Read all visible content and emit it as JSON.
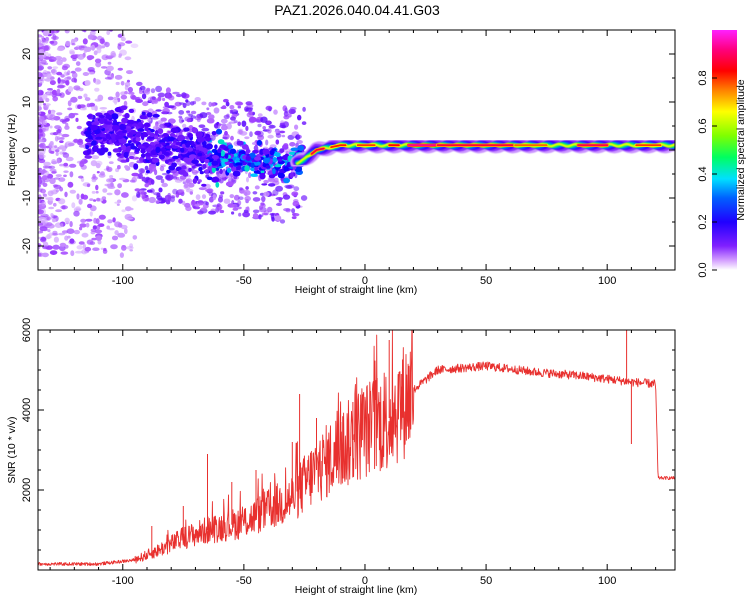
{
  "title": "PAZ1.2026.040.04.41.G03",
  "chart_data": [
    {
      "type": "heatmap",
      "name": "spectrogram",
      "xlabel": "Height of straight line (km)",
      "ylabel": "Frequency (Hz)",
      "xlim": [
        -135,
        128
      ],
      "ylim": [
        -25,
        25
      ],
      "xticks": [
        -100,
        -50,
        0,
        50,
        100
      ],
      "yticks": [
        -20,
        -10,
        0,
        10,
        20
      ],
      "ridge": [
        [
          -135,
          3
        ],
        [
          -110,
          3.5
        ],
        [
          -100,
          3
        ],
        [
          -90,
          1.5
        ],
        [
          -80,
          0.5
        ],
        [
          -70,
          -1
        ],
        [
          -60,
          -1.5
        ],
        [
          -50,
          -2
        ],
        [
          -40,
          -2.5
        ],
        [
          -35,
          -3
        ],
        [
          -30,
          -3
        ],
        [
          -25,
          -2
        ],
        [
          -20,
          0
        ],
        [
          -10,
          1
        ],
        [
          0,
          1
        ],
        [
          10,
          1
        ],
        [
          20,
          1
        ],
        [
          50,
          1
        ],
        [
          90,
          1
        ],
        [
          110,
          1
        ],
        [
          128,
          1
        ]
      ],
      "colorbar": {
        "label": "Normalized spectral amplitude",
        "range": [
          0,
          1
        ],
        "ticks": [
          "0.0",
          "0.2",
          "0.4",
          "0.6",
          "0.8"
        ],
        "tick_values": [
          0,
          0.2,
          0.4,
          0.6,
          0.8
        ],
        "colors": [
          "#ffffff",
          "#a040ff",
          "#5000ff",
          "#0000ff",
          "#00c8ff",
          "#00ff60",
          "#80ff00",
          "#ffff00",
          "#ff8000",
          "#ff0000",
          "#ff00a0",
          "#ff00ff"
        ]
      }
    },
    {
      "type": "line",
      "name": "snr",
      "xlabel": "Height of straight line (km)",
      "ylabel": "SNR (10 * v/v)",
      "xlim": [
        -135,
        128
      ],
      "ylim": [
        0,
        6000
      ],
      "xticks": [
        -100,
        -50,
        0,
        50,
        100
      ],
      "yticks": [
        2000,
        4000,
        6000
      ],
      "color": "#e8302e",
      "trend": [
        [
          -135,
          150
        ],
        [
          -110,
          150
        ],
        [
          -95,
          250
        ],
        [
          -85,
          500
        ],
        [
          -75,
          800
        ],
        [
          -65,
          1000
        ],
        [
          -50,
          1200
        ],
        [
          -40,
          1500
        ],
        [
          -30,
          1800
        ],
        [
          -20,
          2500
        ],
        [
          -10,
          3000
        ],
        [
          0,
          3500
        ],
        [
          10,
          3800
        ],
        [
          20,
          4500
        ],
        [
          30,
          5000
        ],
        [
          50,
          5100
        ],
        [
          70,
          4950
        ],
        [
          90,
          4850
        ],
        [
          110,
          4700
        ],
        [
          120,
          4650
        ],
        [
          121,
          2300
        ],
        [
          128,
          2300
        ]
      ],
      "spikes": [
        [
          -88,
          1100
        ],
        [
          -75,
          1600
        ],
        [
          -65,
          2900
        ],
        [
          -55,
          2200
        ],
        [
          -45,
          2500
        ],
        [
          -30,
          3200
        ],
        [
          -27,
          4400
        ],
        [
          -20,
          3800
        ],
        [
          -10,
          3700
        ],
        [
          -5,
          4200
        ],
        [
          5,
          4800
        ],
        [
          10,
          5750
        ],
        [
          15,
          4900
        ],
        [
          108,
          6000
        ],
        [
          110,
          3150
        ]
      ]
    }
  ]
}
